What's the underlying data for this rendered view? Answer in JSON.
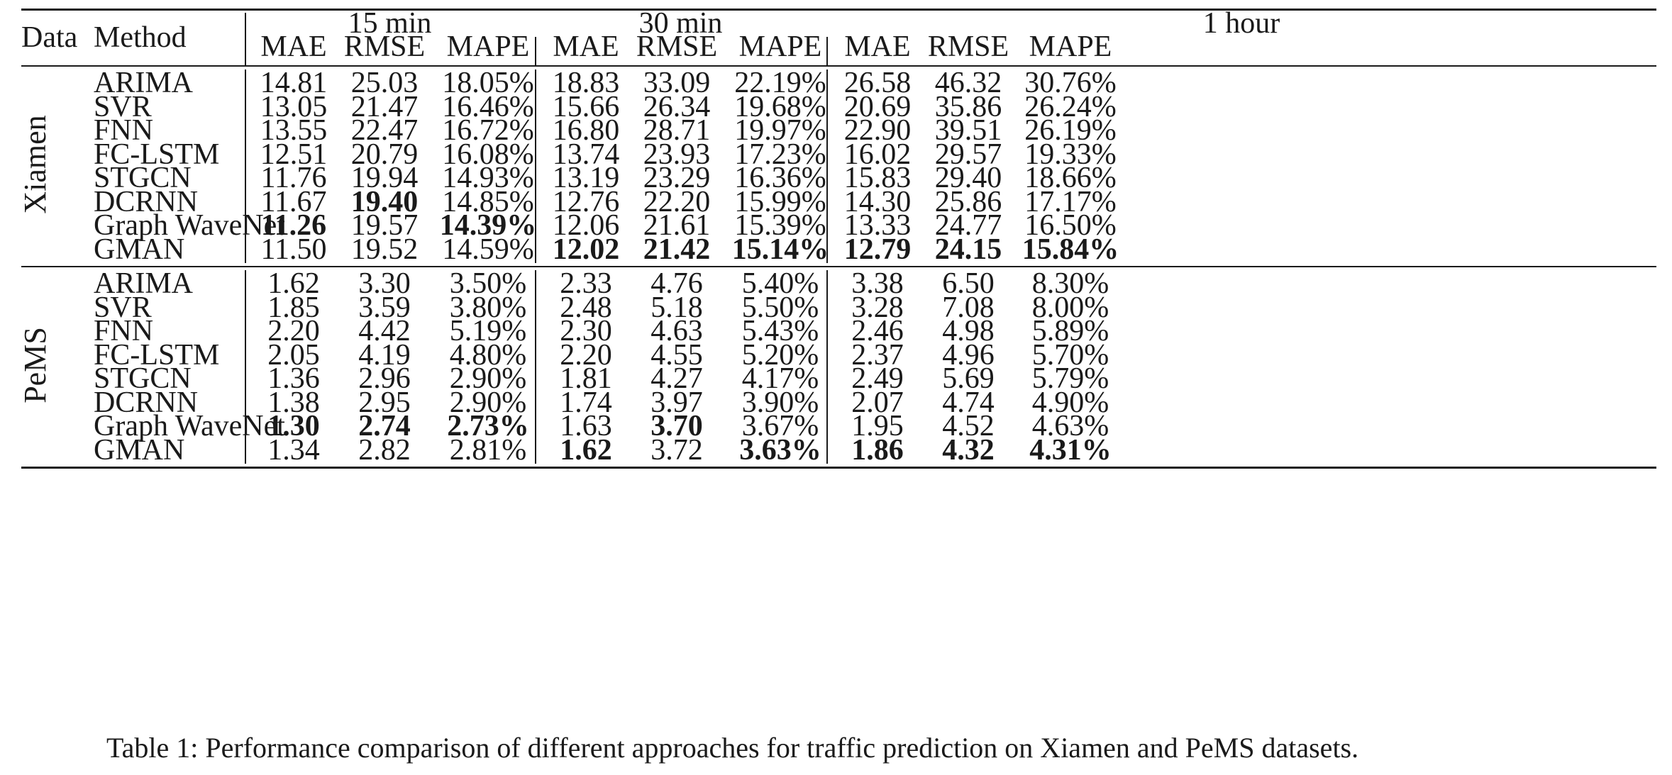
{
  "table": {
    "header": {
      "data_label": "Data",
      "method_label": "Method",
      "horizons": [
        "15 min",
        "30 min",
        "1 hour"
      ],
      "metrics": [
        "MAE",
        "RMSE",
        "MAPE"
      ]
    },
    "groups": [
      {
        "name": "Xiamen",
        "rows": [
          {
            "method": "ARIMA",
            "values": [
              "14.81",
              "25.03",
              "18.05%",
              "18.83",
              "33.09",
              "22.19%",
              "26.58",
              "46.32",
              "30.76%"
            ],
            "bold": [
              false,
              false,
              false,
              false,
              false,
              false,
              false,
              false,
              false
            ]
          },
          {
            "method": "SVR",
            "values": [
              "13.05",
              "21.47",
              "16.46%",
              "15.66",
              "26.34",
              "19.68%",
              "20.69",
              "35.86",
              "26.24%"
            ],
            "bold": [
              false,
              false,
              false,
              false,
              false,
              false,
              false,
              false,
              false
            ]
          },
          {
            "method": "FNN",
            "values": [
              "13.55",
              "22.47",
              "16.72%",
              "16.80",
              "28.71",
              "19.97%",
              "22.90",
              "39.51",
              "26.19%"
            ],
            "bold": [
              false,
              false,
              false,
              false,
              false,
              false,
              false,
              false,
              false
            ]
          },
          {
            "method": "FC-LSTM",
            "values": [
              "12.51",
              "20.79",
              "16.08%",
              "13.74",
              "23.93",
              "17.23%",
              "16.02",
              "29.57",
              "19.33%"
            ],
            "bold": [
              false,
              false,
              false,
              false,
              false,
              false,
              false,
              false,
              false
            ]
          },
          {
            "method": "STGCN",
            "values": [
              "11.76",
              "19.94",
              "14.93%",
              "13.19",
              "23.29",
              "16.36%",
              "15.83",
              "29.40",
              "18.66%"
            ],
            "bold": [
              false,
              false,
              false,
              false,
              false,
              false,
              false,
              false,
              false
            ]
          },
          {
            "method": "DCRNN",
            "values": [
              "11.67",
              "19.40",
              "14.85%",
              "12.76",
              "22.20",
              "15.99%",
              "14.30",
              "25.86",
              "17.17%"
            ],
            "bold": [
              false,
              true,
              false,
              false,
              false,
              false,
              false,
              false,
              false
            ]
          },
          {
            "method": "Graph WaveNet",
            "values": [
              "11.26",
              "19.57",
              "14.39%",
              "12.06",
              "21.61",
              "15.39%",
              "13.33",
              "24.77",
              "16.50%"
            ],
            "bold": [
              true,
              false,
              true,
              false,
              false,
              false,
              false,
              false,
              false
            ]
          },
          {
            "method": "GMAN",
            "values": [
              "11.50",
              "19.52",
              "14.59%",
              "12.02",
              "21.42",
              "15.14%",
              "12.79",
              "24.15",
              "15.84%"
            ],
            "bold": [
              false,
              false,
              false,
              true,
              true,
              true,
              true,
              true,
              true
            ]
          }
        ]
      },
      {
        "name": "PeMS",
        "rows": [
          {
            "method": "ARIMA",
            "values": [
              "1.62",
              "3.30",
              "3.50%",
              "2.33",
              "4.76",
              "5.40%",
              "3.38",
              "6.50",
              "8.30%"
            ],
            "bold": [
              false,
              false,
              false,
              false,
              false,
              false,
              false,
              false,
              false
            ]
          },
          {
            "method": "SVR",
            "values": [
              "1.85",
              "3.59",
              "3.80%",
              "2.48",
              "5.18",
              "5.50%",
              "3.28",
              "7.08",
              "8.00%"
            ],
            "bold": [
              false,
              false,
              false,
              false,
              false,
              false,
              false,
              false,
              false
            ]
          },
          {
            "method": "FNN",
            "values": [
              "2.20",
              "4.42",
              "5.19%",
              "2.30",
              "4.63",
              "5.43%",
              "2.46",
              "4.98",
              "5.89%"
            ],
            "bold": [
              false,
              false,
              false,
              false,
              false,
              false,
              false,
              false,
              false
            ]
          },
          {
            "method": "FC-LSTM",
            "values": [
              "2.05",
              "4.19",
              "4.80%",
              "2.20",
              "4.55",
              "5.20%",
              "2.37",
              "4.96",
              "5.70%"
            ],
            "bold": [
              false,
              false,
              false,
              false,
              false,
              false,
              false,
              false,
              false
            ]
          },
          {
            "method": "STGCN",
            "values": [
              "1.36",
              "2.96",
              "2.90%",
              "1.81",
              "4.27",
              "4.17%",
              "2.49",
              "5.69",
              "5.79%"
            ],
            "bold": [
              false,
              false,
              false,
              false,
              false,
              false,
              false,
              false,
              false
            ]
          },
          {
            "method": "DCRNN",
            "values": [
              "1.38",
              "2.95",
              "2.90%",
              "1.74",
              "3.97",
              "3.90%",
              "2.07",
              "4.74",
              "4.90%"
            ],
            "bold": [
              false,
              false,
              false,
              false,
              false,
              false,
              false,
              false,
              false
            ]
          },
          {
            "method": "Graph WaveNet",
            "values": [
              "1.30",
              "2.74",
              "2.73%",
              "1.63",
              "3.70",
              "3.67%",
              "1.95",
              "4.52",
              "4.63%"
            ],
            "bold": [
              true,
              true,
              true,
              false,
              true,
              false,
              false,
              false,
              false
            ]
          },
          {
            "method": "GMAN",
            "values": [
              "1.34",
              "2.82",
              "2.81%",
              "1.62",
              "3.72",
              "3.63%",
              "1.86",
              "4.32",
              "4.31%"
            ],
            "bold": [
              false,
              false,
              false,
              true,
              false,
              true,
              true,
              true,
              true
            ]
          }
        ]
      }
    ]
  },
  "caption": "Table 1: Performance comparison of different approaches for traffic prediction on Xiamen and PeMS datasets."
}
